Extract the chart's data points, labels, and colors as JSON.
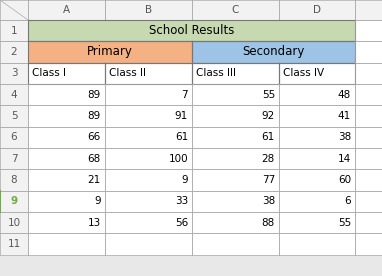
{
  "header_row1_text": "School Results",
  "header_row1_color": "#c6d9b0",
  "header_row2_primary_text": "Primary",
  "header_row2_primary_color": "#f4b183",
  "header_row2_secondary_text": "Secondary",
  "header_row2_secondary_color": "#9dc3e6",
  "col_headers": [
    "Class I",
    "Class II",
    "Class III",
    "Class IV"
  ],
  "data": [
    [
      89,
      7,
      55,
      48
    ],
    [
      89,
      91,
      92,
      41
    ],
    [
      66,
      61,
      61,
      38
    ],
    [
      68,
      100,
      28,
      14
    ],
    [
      21,
      9,
      77,
      60
    ],
    [
      9,
      33,
      38,
      6
    ],
    [
      13,
      56,
      88,
      55
    ]
  ],
  "highlighted_row_num": 9,
  "highlighted_row_num_color": "#70ad47",
  "row_num_color": "#595959",
  "bg_color": "#ffffff",
  "row_num_bg": "#f2f2f2",
  "col_header_bg": "#f2f2f2",
  "fig_bg": "#e8e8e8",
  "col_names": [
    "A",
    "B",
    "C",
    "D"
  ],
  "excel_rows": 11
}
